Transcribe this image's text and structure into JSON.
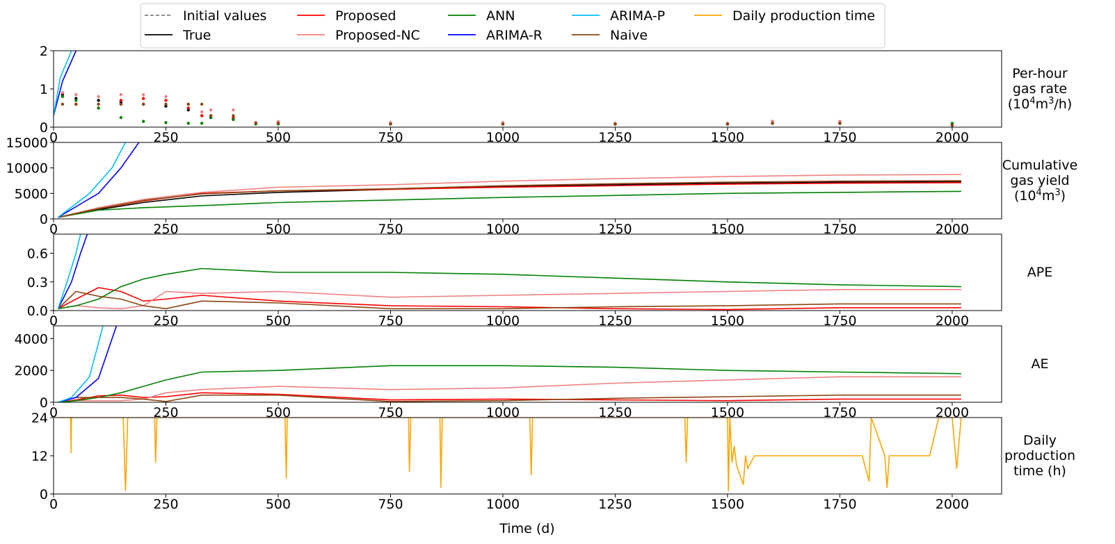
{
  "figure": {
    "xlabel": "Time (d)",
    "x_ticks": [
      0,
      250,
      500,
      750,
      1000,
      1250,
      1500,
      1750,
      2000
    ],
    "xlim": [
      0,
      2110
    ],
    "legend": {
      "placement": "top-center",
      "entries": [
        {
          "name": "Initial values",
          "color": "#808080",
          "dash": "dashed"
        },
        {
          "name": "True",
          "color": "#000000",
          "dash": "solid"
        },
        {
          "name": "Proposed",
          "color": "#ff0000",
          "dash": "solid"
        },
        {
          "name": "Proposed-NC",
          "color": "#f08080",
          "dash": "solid"
        },
        {
          "name": "ANN",
          "color": "#008000",
          "dash": "solid"
        },
        {
          "name": "ARIMA-R",
          "color": "#0000ff",
          "dash": "solid"
        },
        {
          "name": "ARIMA-P",
          "color": "#00bfff",
          "dash": "solid"
        },
        {
          "name": "Naive",
          "color": "#8b4513",
          "dash": "solid"
        },
        {
          "name": "Daily production time",
          "color": "#ffa500",
          "dash": "solid"
        }
      ]
    }
  },
  "chart_data": [
    {
      "type": "scatter",
      "ylabel_lines": [
        "Per-hour",
        "gas rate",
        "(10^4m^3/h)"
      ],
      "ylim": [
        0,
        2
      ],
      "y_ticks": [
        "0",
        "1",
        "2"
      ],
      "y_tick_values": [
        0,
        1,
        2
      ],
      "series": [
        {
          "name": "True",
          "x": [
            20,
            50,
            100,
            150,
            200,
            250,
            300,
            330,
            350,
            400,
            450,
            500,
            750,
            1000,
            1250,
            1500,
            1600,
            1750,
            2000
          ],
          "y": [
            0.85,
            0.75,
            0.7,
            0.65,
            0.6,
            0.55,
            0.45,
            0.3,
            0.25,
            0.2,
            0.12,
            0.12,
            0.1,
            0.1,
            0.08,
            0.08,
            0.1,
            0.1,
            0.05
          ]
        },
        {
          "name": "Proposed",
          "x": [
            20,
            50,
            100,
            150,
            200,
            250,
            300,
            330,
            350,
            400,
            450,
            500,
            750,
            1000,
            1250,
            1500,
            1600,
            1750,
            2000
          ],
          "y": [
            0.9,
            0.6,
            0.5,
            0.7,
            0.75,
            0.7,
            0.5,
            0.3,
            0.3,
            0.25,
            0.12,
            0.12,
            0.1,
            0.1,
            0.1,
            0.1,
            0.15,
            0.15,
            0.08
          ]
        },
        {
          "name": "Proposed-NC",
          "x": [
            20,
            50,
            100,
            150,
            200,
            250,
            300,
            330,
            350,
            400,
            450,
            500,
            750,
            1000,
            1250,
            1500,
            1600,
            1750,
            2000
          ],
          "y": [
            0.9,
            0.85,
            0.8,
            0.85,
            0.85,
            0.8,
            0.6,
            0.4,
            0.45,
            0.45,
            0.12,
            0.15,
            0.12,
            0.12,
            0.1,
            0.1,
            0.15,
            0.15,
            0.08
          ]
        },
        {
          "name": "ANN",
          "x": [
            20,
            50,
            100,
            150,
            200,
            250,
            300,
            330,
            350,
            400,
            450,
            500,
            750,
            1000,
            1250,
            1500,
            1600,
            1750,
            2000
          ],
          "y": [
            0.8,
            0.7,
            0.5,
            0.25,
            0.15,
            0.12,
            0.1,
            0.1,
            0.25,
            0.2,
            0.08,
            0.08,
            0.08,
            0.08,
            0.08,
            0.08,
            0.1,
            0.1,
            0.1
          ]
        },
        {
          "name": "Naive",
          "x": [
            20,
            50,
            100,
            150,
            200,
            250,
            300,
            330,
            350,
            400,
            450,
            500,
            750,
            1000,
            1250,
            1500,
            1600,
            1750,
            2000
          ],
          "y": [
            0.6,
            0.6,
            0.6,
            0.6,
            0.6,
            0.6,
            0.6,
            0.6,
            0.3,
            0.3,
            0.1,
            0.1,
            0.08,
            0.08,
            0.08,
            0.08,
            0.1,
            0.1,
            0.05
          ]
        },
        {
          "name": "ARIMA-R",
          "x": [
            0,
            20,
            50
          ],
          "y": [
            0.3,
            1.2,
            2.0
          ]
        },
        {
          "name": "ARIMA-P",
          "x": [
            0,
            15,
            40
          ],
          "y": [
            0.3,
            1.3,
            2.0
          ]
        }
      ]
    },
    {
      "type": "line",
      "ylabel_lines": [
        "Cumulative",
        "gas yield",
        "(10^4m^3)"
      ],
      "ylim": [
        0,
        15000
      ],
      "y_ticks": [
        "0",
        "5000",
        "10000",
        "15000"
      ],
      "y_tick_values": [
        0,
        5000,
        10000,
        15000
      ],
      "series": [
        {
          "name": "True",
          "x": [
            10,
            100,
            200,
            330,
            500,
            750,
            1000,
            1250,
            1500,
            1750,
            2020
          ],
          "y": [
            300,
            1800,
            3200,
            4500,
            5200,
            5800,
            6300,
            6700,
            7000,
            7200,
            7300
          ]
        },
        {
          "name": "Proposed",
          "x": [
            10,
            100,
            200,
            330,
            500,
            750,
            1000,
            1250,
            1500,
            1750,
            2020
          ],
          "y": [
            300,
            2000,
            3500,
            5000,
            5500,
            5800,
            6200,
            6500,
            6800,
            7000,
            7100
          ]
        },
        {
          "name": "Proposed-NC",
          "x": [
            10,
            100,
            200,
            330,
            500,
            750,
            1000,
            1250,
            1500,
            1750,
            2020
          ],
          "y": [
            300,
            2200,
            3800,
            5200,
            6200,
            6700,
            7400,
            7900,
            8300,
            8600,
            8700
          ]
        },
        {
          "name": "ANN",
          "x": [
            10,
            100,
            200,
            330,
            500,
            750,
            1000,
            1250,
            1500,
            1750,
            2020
          ],
          "y": [
            300,
            1700,
            2200,
            2600,
            3200,
            3700,
            4200,
            4600,
            5000,
            5200,
            5400
          ]
        },
        {
          "name": "Naive",
          "x": [
            10,
            100,
            200,
            330,
            500,
            750,
            1000,
            1250,
            1500,
            1750,
            2020
          ],
          "y": [
            300,
            2000,
            3600,
            4900,
            5500,
            5900,
            6500,
            6900,
            7200,
            7400,
            7500
          ]
        },
        {
          "name": "ARIMA-R",
          "x": [
            10,
            100,
            150,
            190
          ],
          "y": [
            300,
            5000,
            10000,
            15000
          ]
        },
        {
          "name": "ARIMA-P",
          "x": [
            10,
            80,
            130,
            160
          ],
          "y": [
            300,
            5000,
            10000,
            15000
          ]
        }
      ]
    },
    {
      "type": "line",
      "ylabel_lines": [
        "APE"
      ],
      "ylim": [
        0,
        0.8
      ],
      "y_ticks": [
        "0.0",
        "0.3",
        "0.6"
      ],
      "y_tick_values": [
        0,
        0.3,
        0.6
      ],
      "series": [
        {
          "name": "Proposed",
          "x": [
            10,
            50,
            100,
            150,
            200,
            250,
            330,
            500,
            750,
            1000,
            1250,
            1500,
            1750,
            2020
          ],
          "y": [
            0.02,
            0.12,
            0.24,
            0.2,
            0.1,
            0.12,
            0.16,
            0.1,
            0.05,
            0.04,
            0.02,
            0.01,
            0.03,
            0.03
          ]
        },
        {
          "name": "Proposed-NC",
          "x": [
            10,
            50,
            100,
            150,
            200,
            250,
            330,
            500,
            750,
            1000,
            1250,
            1500,
            1750,
            2020
          ],
          "y": [
            0.02,
            0.05,
            0.03,
            0.02,
            0.05,
            0.2,
            0.18,
            0.2,
            0.14,
            0.16,
            0.18,
            0.2,
            0.22,
            0.22
          ]
        },
        {
          "name": "ANN",
          "x": [
            10,
            50,
            100,
            150,
            200,
            250,
            330,
            500,
            750,
            1000,
            1250,
            1500,
            1750,
            2020
          ],
          "y": [
            0.02,
            0.05,
            0.12,
            0.25,
            0.33,
            0.38,
            0.44,
            0.4,
            0.4,
            0.38,
            0.34,
            0.3,
            0.27,
            0.25
          ]
        },
        {
          "name": "Naive",
          "x": [
            10,
            50,
            100,
            150,
            200,
            250,
            330,
            500,
            750,
            1000,
            1250,
            1500,
            1750,
            2020
          ],
          "y": [
            0.02,
            0.2,
            0.15,
            0.12,
            0.05,
            0.02,
            0.1,
            0.08,
            0.02,
            0.02,
            0.04,
            0.05,
            0.07,
            0.07
          ]
        },
        {
          "name": "ARIMA-R",
          "x": [
            10,
            40,
            60,
            75
          ],
          "y": [
            0.02,
            0.3,
            0.6,
            0.8
          ]
        },
        {
          "name": "ARIMA-P",
          "x": [
            10,
            30,
            50,
            60
          ],
          "y": [
            0.02,
            0.3,
            0.6,
            0.8
          ]
        }
      ]
    },
    {
      "type": "line",
      "ylabel_lines": [
        "AE"
      ],
      "ylim": [
        0,
        4800
      ],
      "y_ticks": [
        "0",
        "2000",
        "4000"
      ],
      "y_tick_values": [
        0,
        2000,
        4000
      ],
      "series": [
        {
          "name": "Proposed",
          "x": [
            10,
            50,
            100,
            150,
            200,
            250,
            330,
            500,
            750,
            1000,
            1250,
            1500,
            1750,
            2020
          ],
          "y": [
            0,
            150,
            400,
            450,
            300,
            350,
            600,
            500,
            150,
            200,
            150,
            100,
            200,
            200
          ]
        },
        {
          "name": "Proposed-NC",
          "x": [
            10,
            50,
            100,
            150,
            200,
            250,
            330,
            500,
            750,
            1000,
            1250,
            1500,
            1750,
            2020
          ],
          "y": [
            0,
            100,
            100,
            100,
            200,
            600,
            800,
            1000,
            800,
            900,
            1200,
            1400,
            1600,
            1600
          ]
        },
        {
          "name": "ANN",
          "x": [
            10,
            50,
            100,
            150,
            200,
            250,
            330,
            500,
            750,
            1000,
            1250,
            1500,
            1750,
            2020
          ],
          "y": [
            0,
            100,
            300,
            600,
            1000,
            1400,
            1900,
            2000,
            2300,
            2300,
            2200,
            2000,
            1900,
            1800
          ]
        },
        {
          "name": "Naive",
          "x": [
            10,
            50,
            100,
            150,
            200,
            250,
            330,
            500,
            750,
            1000,
            1250,
            1500,
            1750,
            2020
          ],
          "y": [
            0,
            300,
            300,
            300,
            200,
            50,
            450,
            450,
            50,
            100,
            250,
            350,
            450,
            450
          ]
        },
        {
          "name": "ARIMA-R",
          "x": [
            10,
            50,
            100,
            140
          ],
          "y": [
            0,
            300,
            1500,
            4800
          ]
        },
        {
          "name": "ARIMA-P",
          "x": [
            10,
            40,
            80,
            110
          ],
          "y": [
            0,
            300,
            1600,
            4800
          ]
        }
      ]
    },
    {
      "type": "line",
      "ylabel_lines": [
        "Daily",
        "production",
        "time (h)"
      ],
      "ylim": [
        0,
        24
      ],
      "y_ticks": [
        "0",
        "12",
        "24"
      ],
      "y_tick_values": [
        0,
        12,
        24
      ],
      "series": [
        {
          "name": "Daily production time",
          "x": [
            10,
            38,
            39,
            40,
            155,
            160,
            165,
            225,
            227,
            230,
            515,
            518,
            520,
            790,
            792,
            795,
            860,
            862,
            865,
            1060,
            1063,
            1066,
            1405,
            1408,
            1411,
            1500,
            1502,
            1505,
            1510,
            1515,
            1520,
            1530,
            1535,
            1540,
            1545,
            1560,
            1600,
            1700,
            1800,
            1815,
            1820,
            1850,
            1855,
            1860,
            1900,
            1950,
            1970,
            1980,
            1990,
            2000,
            2010,
            2020
          ],
          "y": [
            24,
            24,
            13,
            24,
            24,
            1,
            24,
            24,
            10,
            24,
            24,
            5,
            24,
            24,
            7,
            24,
            24,
            2,
            24,
            24,
            6,
            24,
            24,
            10,
            24,
            24,
            1,
            24,
            10,
            15,
            9,
            5,
            3,
            12,
            8,
            12,
            12,
            12,
            12,
            4,
            24,
            12,
            2,
            12,
            12,
            12,
            24,
            24,
            24,
            24,
            8,
            24
          ]
        }
      ]
    }
  ]
}
